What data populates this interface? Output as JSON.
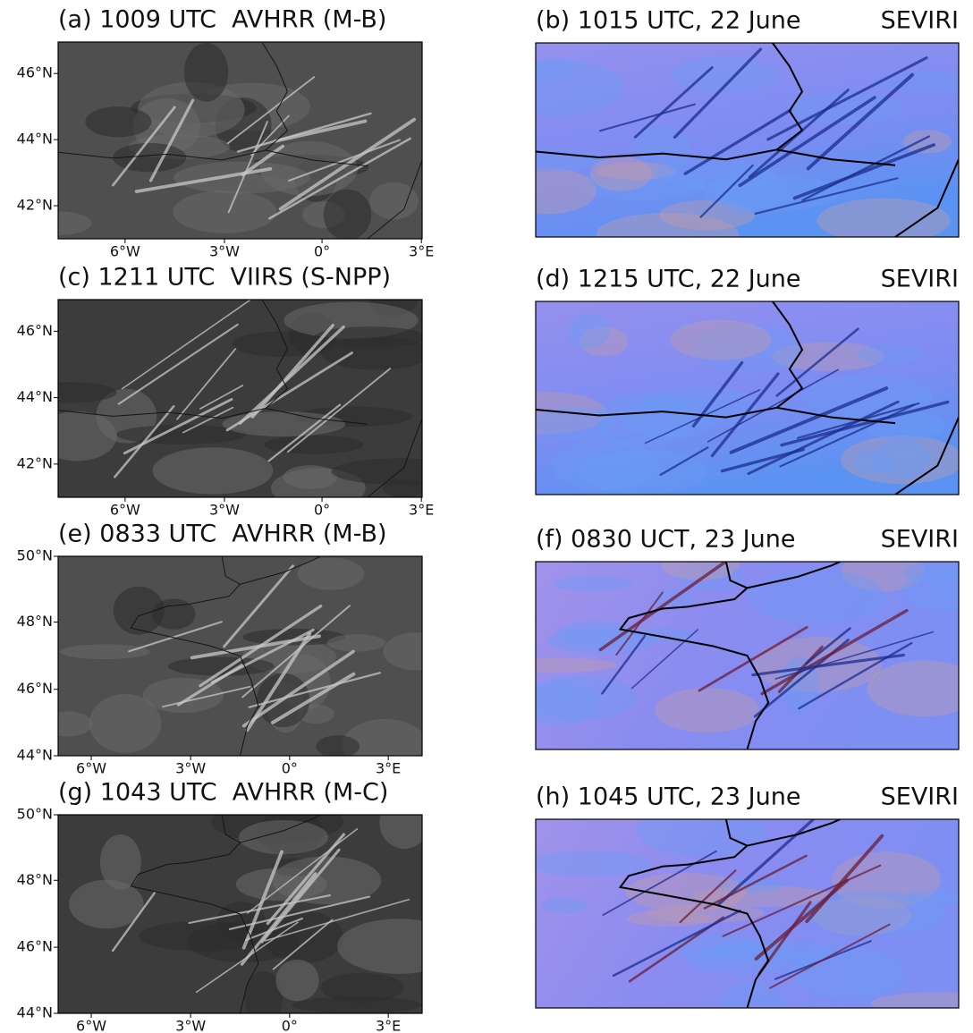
{
  "panels": [
    {
      "title": "(a) 1009 UTC  AVHRR (M-B)",
      "yticks": [
        "46°N",
        "44°N",
        "42°N"
      ],
      "xticks": [
        "6°W",
        "3°W",
        "0°",
        "3°E"
      ]
    },
    {
      "title": "(b) 1015 UTC, 22 June",
      "instrument": "SEVIRI"
    },
    {
      "title": "(c) 1211 UTC  VIIRS (S-NPP)",
      "yticks": [
        "46°N",
        "44°N",
        "42°N"
      ],
      "xticks": [
        "6°W",
        "3°W",
        "0°",
        "3°E"
      ]
    },
    {
      "title": "(d) 1215 UTC, 22 June",
      "instrument": "SEVIRI"
    },
    {
      "title": "(e) 0833 UTC  AVHRR (M-B)",
      "yticks": [
        "50°N",
        "48°N",
        "46°N",
        "44°N"
      ],
      "xticks": [
        "6°W",
        "3°W",
        "0°",
        "3°E"
      ]
    },
    {
      "title": "(f) 0830 UCT, 23 June",
      "instrument": "SEVIRI"
    },
    {
      "title": "(g) 1043 UTC  AVHRR (M-C)",
      "yticks": [
        "50°N",
        "48°N",
        "46°N",
        "44°N"
      ],
      "xticks": [
        "6°W",
        "3°W",
        "0°",
        "3°E"
      ]
    },
    {
      "title": "(h) 1045 UTC, 23 June",
      "instrument": "SEVIRI"
    }
  ]
}
